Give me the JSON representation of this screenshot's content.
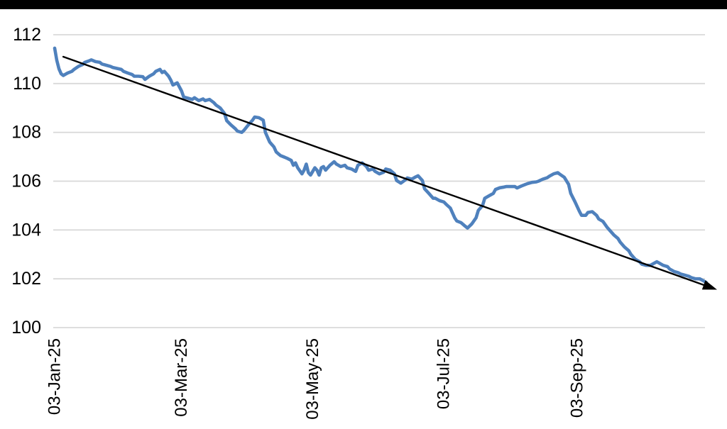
{
  "page": {
    "background_color": "#ffffff",
    "top_bar_color": "#000000"
  },
  "chart_data": {
    "type": "line",
    "title": "",
    "xlabel": "",
    "ylabel": "",
    "legend": "none",
    "grid": "horizontal",
    "gridline_color": "#d9d9d9",
    "x_axis": {
      "start_label": "03-Jan-25",
      "tick_labels": [
        "03-Jan-25",
        "03-Mar-25",
        "03-May-25",
        "03-Jul-25",
        "03-Sep-25"
      ],
      "tick_days": [
        0,
        59,
        120,
        181,
        243
      ],
      "label_rotation_deg": -90
    },
    "y_axis": {
      "min": 100,
      "max": 112,
      "step": 2,
      "tick_labels": [
        "100",
        "102",
        "104",
        "106",
        "108",
        "110",
        "112"
      ],
      "tick_values": [
        100,
        102,
        104,
        106,
        108,
        110,
        112
      ]
    },
    "series": [
      {
        "name": "daily-index-line",
        "color": "#4F81BD",
        "points_day_value": [
          [
            0,
            111.45
          ],
          [
            1,
            110.95
          ],
          [
            2,
            110.6
          ],
          [
            3,
            110.4
          ],
          [
            4,
            110.33
          ],
          [
            5,
            110.38
          ],
          [
            6,
            110.43
          ],
          [
            8,
            110.5
          ],
          [
            9,
            110.58
          ],
          [
            11,
            110.7
          ],
          [
            13,
            110.78
          ],
          [
            14,
            110.87
          ],
          [
            16,
            110.93
          ],
          [
            17,
            110.97
          ],
          [
            19,
            110.9
          ],
          [
            21,
            110.87
          ],
          [
            22,
            110.8
          ],
          [
            24,
            110.75
          ],
          [
            26,
            110.7
          ],
          [
            27,
            110.66
          ],
          [
            29,
            110.62
          ],
          [
            31,
            110.58
          ],
          [
            32,
            110.5
          ],
          [
            34,
            110.43
          ],
          [
            36,
            110.37
          ],
          [
            37,
            110.3
          ],
          [
            39,
            110.3
          ],
          [
            41,
            110.28
          ],
          [
            42,
            110.17
          ],
          [
            44,
            110.3
          ],
          [
            46,
            110.4
          ],
          [
            47,
            110.5
          ],
          [
            49,
            110.58
          ],
          [
            50,
            110.45
          ],
          [
            51,
            110.5
          ],
          [
            53,
            110.3
          ],
          [
            54,
            110.14
          ],
          [
            55,
            109.94
          ],
          [
            57,
            110.03
          ],
          [
            59,
            109.7
          ],
          [
            60,
            109.45
          ],
          [
            62,
            109.4
          ],
          [
            64,
            109.35
          ],
          [
            65,
            109.42
          ],
          [
            67,
            109.3
          ],
          [
            69,
            109.37
          ],
          [
            70,
            109.3
          ],
          [
            72,
            109.35
          ],
          [
            74,
            109.22
          ],
          [
            75,
            109.12
          ],
          [
            77,
            109.0
          ],
          [
            79,
            108.77
          ],
          [
            80,
            108.48
          ],
          [
            82,
            108.3
          ],
          [
            84,
            108.15
          ],
          [
            85,
            108.05
          ],
          [
            87,
            108.0
          ],
          [
            88,
            108.08
          ],
          [
            90,
            108.3
          ],
          [
            92,
            108.5
          ],
          [
            93,
            108.63
          ],
          [
            95,
            108.6
          ],
          [
            97,
            108.5
          ],
          [
            98,
            108.0
          ],
          [
            100,
            107.6
          ],
          [
            102,
            107.4
          ],
          [
            103,
            107.2
          ],
          [
            105,
            107.05
          ],
          [
            107,
            106.98
          ],
          [
            108,
            106.94
          ],
          [
            110,
            106.85
          ],
          [
            111,
            106.65
          ],
          [
            112,
            106.75
          ],
          [
            113,
            106.55
          ],
          [
            115,
            106.3
          ],
          [
            116,
            106.45
          ],
          [
            117,
            106.7
          ],
          [
            118,
            106.35
          ],
          [
            119,
            106.25
          ],
          [
            121,
            106.55
          ],
          [
            122,
            106.45
          ],
          [
            123,
            106.25
          ],
          [
            124,
            106.55
          ],
          [
            125,
            106.6
          ],
          [
            126,
            106.45
          ],
          [
            128,
            106.65
          ],
          [
            130,
            106.8
          ],
          [
            131,
            106.7
          ],
          [
            133,
            106.6
          ],
          [
            135,
            106.65
          ],
          [
            136,
            106.55
          ],
          [
            138,
            106.5
          ],
          [
            140,
            106.4
          ],
          [
            141,
            106.65
          ],
          [
            143,
            106.75
          ],
          [
            145,
            106.6
          ],
          [
            146,
            106.45
          ],
          [
            148,
            106.5
          ],
          [
            149,
            106.4
          ],
          [
            151,
            106.3
          ],
          [
            153,
            106.37
          ],
          [
            154,
            106.5
          ],
          [
            156,
            106.45
          ],
          [
            158,
            106.3
          ],
          [
            159,
            106.03
          ],
          [
            161,
            105.92
          ],
          [
            163,
            106.05
          ],
          [
            164,
            106.13
          ],
          [
            166,
            106.08
          ],
          [
            168,
            106.18
          ],
          [
            169,
            106.22
          ],
          [
            171,
            106.03
          ],
          [
            172,
            105.69
          ],
          [
            174,
            105.5
          ],
          [
            176,
            105.3
          ],
          [
            177,
            105.3
          ],
          [
            179,
            105.2
          ],
          [
            181,
            105.15
          ],
          [
            182,
            105.06
          ],
          [
            184,
            104.9
          ],
          [
            186,
            104.5
          ],
          [
            187,
            104.37
          ],
          [
            189,
            104.3
          ],
          [
            191,
            104.15
          ],
          [
            192,
            104.08
          ],
          [
            194,
            104.25
          ],
          [
            196,
            104.5
          ],
          [
            197,
            104.8
          ],
          [
            199,
            105.0
          ],
          [
            200,
            105.3
          ],
          [
            202,
            105.4
          ],
          [
            204,
            105.5
          ],
          [
            205,
            105.66
          ],
          [
            207,
            105.73
          ],
          [
            209,
            105.76
          ],
          [
            210,
            105.78
          ],
          [
            212,
            105.78
          ],
          [
            214,
            105.78
          ],
          [
            215,
            105.72
          ],
          [
            217,
            105.8
          ],
          [
            219,
            105.87
          ],
          [
            220,
            105.9
          ],
          [
            222,
            105.95
          ],
          [
            224,
            105.97
          ],
          [
            225,
            106.0
          ],
          [
            227,
            106.08
          ],
          [
            229,
            106.14
          ],
          [
            230,
            106.2
          ],
          [
            232,
            106.3
          ],
          [
            234,
            106.35
          ],
          [
            235,
            106.28
          ],
          [
            237,
            106.16
          ],
          [
            239,
            105.87
          ],
          [
            240,
            105.5
          ],
          [
            242,
            105.15
          ],
          [
            244,
            104.77
          ],
          [
            245,
            104.6
          ],
          [
            247,
            104.6
          ],
          [
            248,
            104.72
          ],
          [
            250,
            104.75
          ],
          [
            252,
            104.6
          ],
          [
            253,
            104.45
          ],
          [
            255,
            104.35
          ],
          [
            257,
            104.1
          ],
          [
            258,
            104.0
          ],
          [
            260,
            103.8
          ],
          [
            262,
            103.65
          ],
          [
            263,
            103.5
          ],
          [
            265,
            103.3
          ],
          [
            267,
            103.15
          ],
          [
            268,
            103.0
          ],
          [
            270,
            102.8
          ],
          [
            272,
            102.7
          ],
          [
            273,
            102.6
          ],
          [
            275,
            102.55
          ],
          [
            277,
            102.55
          ],
          [
            278,
            102.6
          ],
          [
            280,
            102.7
          ],
          [
            281,
            102.65
          ],
          [
            283,
            102.55
          ],
          [
            285,
            102.5
          ],
          [
            286,
            102.4
          ],
          [
            288,
            102.3
          ],
          [
            290,
            102.25
          ],
          [
            291,
            102.2
          ],
          [
            293,
            102.15
          ],
          [
            295,
            102.1
          ],
          [
            296,
            102.05
          ],
          [
            298,
            102.0
          ],
          [
            300,
            102.0
          ],
          [
            301,
            101.95
          ],
          [
            303,
            101.85
          ]
        ]
      },
      {
        "name": "linear-trend-arrow",
        "color": "#000000",
        "arrow_end": true,
        "points_day_value": [
          [
            4,
            111.1
          ],
          [
            304,
            101.68
          ]
        ]
      }
    ]
  }
}
